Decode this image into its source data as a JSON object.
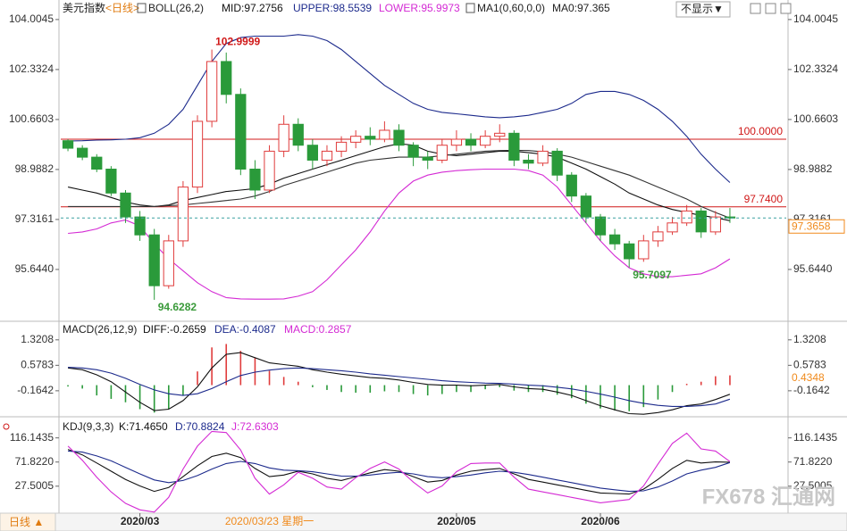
{
  "header": {
    "symbol": "美元指数",
    "period": "<日线>",
    "dropdown": "不显示▼",
    "bottom_tab": "日线 ▲",
    "watermark": "FX678 汇通网"
  },
  "chart_data": [
    {
      "type": "candlestick",
      "title": "BOLL(26,2)",
      "ma_title": "MA1(0,60,0,0)",
      "categories": [
        null,
        null,
        null,
        null,
        null,
        "2020/03",
        null,
        null,
        null,
        null,
        null,
        null,
        null,
        null,
        null,
        null,
        null,
        null,
        null,
        null,
        null,
        null,
        null,
        null,
        null,
        null,
        null,
        "2020/05",
        null,
        null,
        null,
        null,
        null,
        null,
        null,
        null,
        null,
        "2020/06",
        null,
        null,
        null,
        null,
        null,
        null,
        null,
        null,
        null
      ],
      "cursor": {
        "index": 14,
        "label": "2020/03/23 星期一"
      },
      "open": [
        99.95,
        99.7,
        99.4,
        99.0,
        98.2,
        97.4,
        96.8,
        95.1,
        96.6,
        98.4,
        100.6,
        102.6,
        101.5,
        99.0,
        98.3,
        99.6,
        100.5,
        99.8,
        99.3,
        99.6,
        99.9,
        100.1,
        100.0,
        100.3,
        99.8,
        99.4,
        99.3,
        99.8,
        100.0,
        99.8,
        100.1,
        100.2,
        99.3,
        99.2,
        99.6,
        98.8,
        98.1,
        97.4,
        96.8,
        96.5,
        96.0,
        96.6,
        96.9,
        97.2,
        97.6,
        96.9,
        97.4
      ],
      "high": [
        100.0,
        99.8,
        99.5,
        99.1,
        98.3,
        97.6,
        97.0,
        96.8,
        98.6,
        100.8,
        102.9999,
        102.9,
        101.7,
        99.3,
        99.8,
        100.8,
        100.7,
        100.0,
        99.8,
        100.1,
        100.3,
        100.4,
        100.6,
        100.5,
        99.9,
        99.6,
        100.0,
        100.3,
        100.2,
        100.3,
        100.5,
        100.3,
        99.5,
        99.8,
        99.7,
        98.9,
        98.2,
        97.5,
        97.0,
        96.6,
        96.8,
        97.1,
        97.4,
        97.8,
        97.7,
        97.6,
        97.7
      ],
      "low": [
        99.6,
        99.3,
        98.9,
        98.1,
        97.2,
        96.6,
        94.6282,
        95.0,
        96.4,
        98.2,
        100.4,
        101.2,
        98.8,
        98.0,
        98.2,
        99.4,
        99.6,
        99.0,
        99.1,
        99.4,
        99.7,
        99.8,
        99.9,
        99.6,
        99.1,
        99.0,
        99.2,
        99.6,
        99.6,
        99.7,
        99.9,
        99.1,
        99.0,
        99.1,
        98.6,
        97.9,
        97.2,
        96.6,
        96.3,
        95.7097,
        95.9,
        96.4,
        96.8,
        97.1,
        96.7,
        96.8,
        97.2
      ],
      "close": [
        99.7,
        99.4,
        99.0,
        98.2,
        97.4,
        96.8,
        95.1,
        96.6,
        98.4,
        100.6,
        102.6,
        101.5,
        99.0,
        98.3,
        99.6,
        100.5,
        99.8,
        99.3,
        99.6,
        99.9,
        100.1,
        100.0,
        100.3,
        99.8,
        99.4,
        99.3,
        99.8,
        100.0,
        99.8,
        100.1,
        100.2,
        99.3,
        99.2,
        99.6,
        98.8,
        98.1,
        97.4,
        96.8,
        96.5,
        96.0,
        96.6,
        96.9,
        97.2,
        97.6,
        96.9,
        97.4,
        97.3658
      ],
      "up_color": "#e03c3c",
      "down_color": "#2a9a3a",
      "last_color": "#3aa0a0",
      "label_color": "#f08a1c",
      "series": [
        {
          "name": "UPPER:98.5539",
          "color": "#1c2a8c",
          "values": [
            99.94,
            99.95,
            99.97,
            99.98,
            100.0,
            100.05,
            100.2,
            100.5,
            101.0,
            101.8,
            102.6,
            103.2,
            103.4,
            103.45,
            103.45,
            103.45,
            103.5,
            103.45,
            103.3,
            103.0,
            102.6,
            102.2,
            101.8,
            101.5,
            101.2,
            101.0,
            100.9,
            100.85,
            100.8,
            100.75,
            100.72,
            100.75,
            100.8,
            100.9,
            101.0,
            101.2,
            101.5,
            101.6,
            101.6,
            101.5,
            101.3,
            101.0,
            100.6,
            100.1,
            99.5,
            99.0,
            98.5539
          ]
        },
        {
          "name": "MID:97.2756",
          "color": "#111111",
          "values": [
            98.4,
            98.3,
            98.2,
            98.05,
            97.9,
            97.8,
            97.75,
            97.8,
            97.95,
            98.05,
            98.15,
            98.25,
            98.3,
            98.35,
            98.5,
            98.7,
            98.85,
            99.0,
            99.15,
            99.3,
            99.45,
            99.6,
            99.75,
            99.85,
            99.8,
            99.6,
            99.5,
            99.45,
            99.5,
            99.55,
            99.6,
            99.6,
            99.55,
            99.5,
            99.4,
            99.2,
            99.0,
            98.75,
            98.5,
            98.2,
            98.0,
            97.8,
            97.65,
            97.55,
            97.45,
            97.38,
            97.2756
          ]
        },
        {
          "name": "LOWER:95.9973",
          "color": "#d42ad4",
          "values": [
            96.85,
            96.9,
            97.0,
            97.2,
            97.3,
            97.1,
            96.5,
            96.0,
            95.6,
            95.2,
            94.9,
            94.7,
            94.66,
            94.65,
            94.65,
            94.66,
            94.75,
            94.9,
            95.3,
            95.8,
            96.3,
            96.9,
            97.6,
            98.2,
            98.6,
            98.8,
            98.9,
            98.95,
            98.98,
            99.0,
            99.0,
            99.0,
            98.95,
            98.8,
            98.4,
            97.8,
            97.2,
            96.6,
            96.1,
            95.7,
            95.5,
            95.4,
            95.4,
            95.45,
            95.5,
            95.7,
            95.9973
          ]
        },
        {
          "name": "MA0:97.365",
          "color": "#333333",
          "values": [
            97.75,
            97.75,
            97.75,
            97.75,
            97.75,
            97.75,
            97.75,
            97.78,
            97.8,
            97.85,
            97.9,
            97.95,
            98.0,
            98.1,
            98.25,
            98.45,
            98.6,
            98.75,
            98.9,
            99.05,
            99.2,
            99.3,
            99.35,
            99.4,
            99.4,
            99.4,
            99.45,
            99.5,
            99.55,
            99.6,
            99.62,
            99.63,
            99.62,
            99.58,
            99.5,
            99.4,
            99.25,
            99.1,
            98.95,
            98.8,
            98.6,
            98.4,
            98.2,
            98.0,
            97.75,
            97.55,
            97.365
          ]
        }
      ],
      "hlines": [
        {
          "value": 100,
          "label": "100.0000",
          "color": "#d01818"
        },
        {
          "value": 97.74,
          "label": "97.7400",
          "color": "#d01818"
        }
      ],
      "extremes": [
        {
          "field": "high",
          "index": 10,
          "color": "#d01818"
        },
        {
          "field": "low",
          "index": 6,
          "color": "#3a9a3a"
        },
        {
          "field": "low",
          "index": 39,
          "color": "#3a9a3a"
        }
      ],
      "ylim": [
        93.97,
        104.21
      ],
      "yticks": [
        {
          "value": 95.644,
          "label": "95.6440"
        },
        97.3161,
        98.9882,
        100.6603,
        102.3324,
        104.0045
      ]
    },
    {
      "type": "macd",
      "title": "MACD(26,12,9)",
      "cursor_value": 0.4348,
      "series": [
        {
          "name": "DIFF:-0.2659",
          "color": "#111111",
          "kind": "line",
          "values": [
            0.5,
            0.45,
            0.3,
            0.1,
            -0.2,
            -0.5,
            -0.74,
            -0.7,
            -0.45,
            -0.05,
            0.5,
            0.9,
            0.95,
            0.8,
            0.65,
            0.6,
            0.55,
            0.45,
            0.38,
            0.32,
            0.27,
            0.22,
            0.2,
            0.15,
            0.08,
            0.02,
            0.0,
            0.0,
            -0.02,
            0.0,
            0.02,
            -0.05,
            -0.1,
            -0.12,
            -0.2,
            -0.3,
            -0.45,
            -0.6,
            -0.72,
            -0.83,
            -0.85,
            -0.8,
            -0.72,
            -0.6,
            -0.55,
            -0.42,
            -0.2659
          ]
        },
        {
          "name": "DEA:-0.4087",
          "color": "#1c2a8c",
          "kind": "line",
          "values": [
            0.52,
            0.5,
            0.45,
            0.35,
            0.2,
            0.02,
            -0.14,
            -0.25,
            -0.3,
            -0.25,
            -0.1,
            0.1,
            0.28,
            0.38,
            0.44,
            0.48,
            0.5,
            0.48,
            0.45,
            0.42,
            0.38,
            0.33,
            0.29,
            0.25,
            0.21,
            0.17,
            0.13,
            0.1,
            0.08,
            0.06,
            0.05,
            0.03,
            0.0,
            -0.02,
            -0.06,
            -0.11,
            -0.18,
            -0.26,
            -0.35,
            -0.45,
            -0.53,
            -0.59,
            -0.62,
            -0.62,
            -0.6,
            -0.55,
            -0.4087
          ]
        },
        {
          "name": "MACD:0.2857",
          "color": "#d42ad4",
          "kind": "bar",
          "up_color": "#e03c3c",
          "down_color": "#2a9a3a",
          "values": [
            -0.04,
            -0.1,
            -0.3,
            -0.4,
            -0.5,
            -0.7,
            -0.8,
            -0.7,
            -0.3,
            0.4,
            1.1,
            1.2,
            1.0,
            0.8,
            0.42,
            0.24,
            0.1,
            -0.06,
            -0.14,
            -0.2,
            -0.22,
            -0.22,
            -0.18,
            -0.2,
            -0.26,
            -0.3,
            -0.26,
            -0.2,
            -0.2,
            -0.12,
            -0.06,
            -0.16,
            -0.2,
            -0.2,
            -0.28,
            -0.38,
            -0.54,
            -0.68,
            -0.74,
            -0.76,
            -0.64,
            -0.42,
            -0.2,
            0.04,
            0.1,
            0.26,
            0.2857
          ]
        }
      ],
      "ylim": [
        -0.87,
        1.81
      ],
      "yticks": [
        -0.1642,
        0.5783,
        1.3208
      ]
    },
    {
      "type": "kdj",
      "title": "KDJ(9,3,3)",
      "series": [
        {
          "name": "K:71.4650",
          "color": "#111111",
          "values": [
            95,
            85,
            70,
            55,
            40,
            28,
            18,
            25,
            45,
            65,
            82,
            88,
            80,
            60,
            45,
            48,
            55,
            50,
            42,
            38,
            45,
            52,
            58,
            55,
            45,
            35,
            38,
            48,
            55,
            58,
            60,
            50,
            40,
            35,
            30,
            25,
            20,
            15,
            14,
            13,
            22,
            40,
            60,
            75,
            70,
            72,
            71.465
          ]
        },
        {
          "name": "D:70.8824",
          "color": "#1c2a8c",
          "values": [
            92,
            90,
            83,
            74,
            62,
            50,
            39,
            34,
            38,
            47,
            59,
            69,
            73,
            69,
            61,
            57,
            56,
            54,
            50,
            46,
            46,
            48,
            51,
            53,
            50,
            45,
            43,
            45,
            48,
            52,
            55,
            53,
            49,
            44,
            39,
            34,
            29,
            24,
            21,
            18,
            19,
            26,
            37,
            50,
            57,
            62,
            70.8824
          ]
        },
        {
          "name": "J:72.6303",
          "color": "#d42ad4",
          "values": [
            101,
            75,
            44,
            17,
            -4,
            -16,
            -20,
            7,
            59,
            101,
            128,
            126,
            94,
            42,
            13,
            30,
            53,
            42,
            26,
            22,
            43,
            60,
            72,
            59,
            35,
            15,
            28,
            54,
            69,
            70,
            70,
            44,
            22,
            17,
            12,
            7,
            2,
            -3,
            0,
            3,
            28,
            68,
            106,
            125,
            96,
            92,
            72.6303
          ]
        }
      ],
      "ylim": [
        -22,
        150
      ],
      "yticks": [
        27.5005,
        {
          "value": 71.822,
          "label": "71.8220"
        },
        116.1435
      ]
    }
  ]
}
